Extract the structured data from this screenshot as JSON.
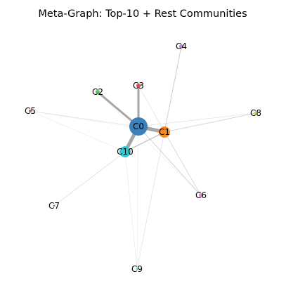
{
  "title": "Meta-Graph: Top-10 + Rest Communities",
  "nodes": [
    {
      "id": "C0",
      "label": "C0",
      "color": "#3b80b9"
    },
    {
      "id": "C1",
      "label": "C1",
      "color": "#f5882a"
    },
    {
      "id": "C2",
      "label": "C2",
      "color": "#5cc25c"
    },
    {
      "id": "C3",
      "label": "C3",
      "color": "#e04a45"
    },
    {
      "id": "C4",
      "label": "C4",
      "color": "#a98bc8"
    },
    {
      "id": "C5",
      "label": "C5",
      "color": "#a0725e"
    },
    {
      "id": "C6",
      "label": "C6",
      "color": "#e58fc9"
    },
    {
      "id": "C7",
      "label": "C7",
      "color": "#8c8c8c"
    },
    {
      "id": "C8",
      "label": "C8",
      "color": "#c8c84a"
    },
    {
      "id": "C9",
      "label": "C9",
      "color": "#5ad0d8"
    },
    {
      "id": "C10",
      "label": "C10",
      "color": "#38c7d0"
    }
  ],
  "edges": [
    {
      "source": "C0",
      "target": "C1",
      "weight": 5
    },
    {
      "source": "C0",
      "target": "C10",
      "weight": 5
    },
    {
      "source": "C0",
      "target": "C2",
      "weight": 3
    },
    {
      "source": "C0",
      "target": "C3",
      "weight": 3
    },
    {
      "source": "C1",
      "target": "C10",
      "weight": 1.2
    },
    {
      "source": "C1",
      "target": "C4",
      "weight": 0.8
    },
    {
      "source": "C1",
      "target": "C8",
      "weight": 0.8
    },
    {
      "source": "C0",
      "target": "C6",
      "weight": 0.8
    },
    {
      "source": "C10",
      "target": "C7",
      "weight": 0.6
    },
    {
      "source": "C1",
      "target": "C6",
      "weight": 0.6
    },
    {
      "source": "C0",
      "target": "C8",
      "weight": 0.5
    },
    {
      "source": "C0",
      "target": "C5",
      "weight": 0.5
    },
    {
      "source": "C10",
      "target": "C5",
      "weight": 0.4
    },
    {
      "source": "C10",
      "target": "C9",
      "weight": 0.4
    },
    {
      "source": "C3",
      "target": "C9",
      "weight": 0.3
    },
    {
      "source": "C2",
      "target": "C6",
      "weight": 0.3
    },
    {
      "source": "C3",
      "target": "C1",
      "weight": 0.3
    },
    {
      "source": "C4",
      "target": "C9",
      "weight": 0.2
    },
    {
      "source": "C5",
      "target": "C1",
      "weight": 0.2
    },
    {
      "source": "C1",
      "target": "C9",
      "weight": 0.2
    },
    {
      "source": "C3",
      "target": "C6",
      "weight": 0.2
    }
  ]
}
